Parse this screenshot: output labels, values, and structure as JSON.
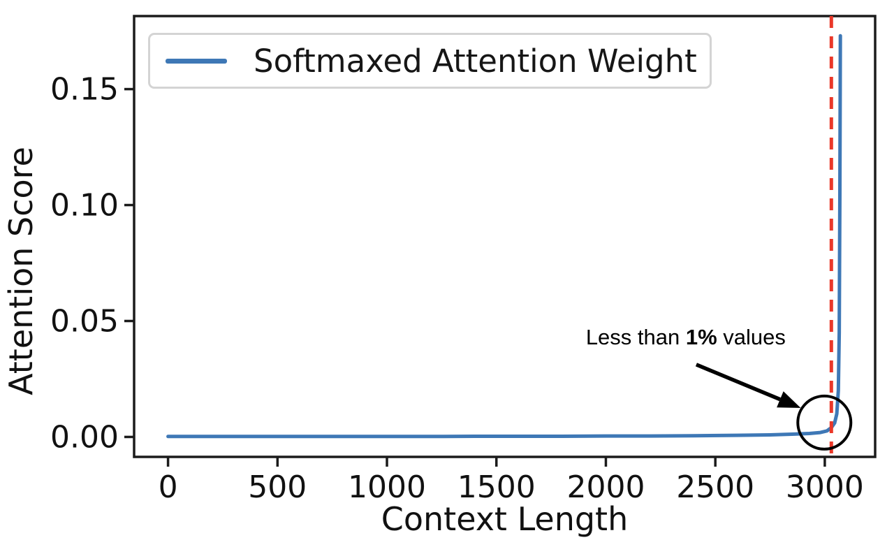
{
  "figure": {
    "background": "#ffffff",
    "spine_color": "#1b1b1b",
    "tick_label_color": "#111111"
  },
  "chart_data": {
    "type": "line",
    "title": "",
    "xlabel": "Context Length",
    "ylabel": "Attention Score",
    "xlim": [
      -155,
      3230
    ],
    "ylim": [
      -0.0086,
      0.1815
    ],
    "grid": false,
    "legend_position": "upper left",
    "xticks": {
      "values": [
        0,
        500,
        1000,
        1500,
        2000,
        2500,
        3000
      ],
      "labels": [
        "0",
        "500",
        "1000",
        "1500",
        "2000",
        "2500",
        "3000"
      ]
    },
    "yticks": {
      "values": [
        0.0,
        0.05,
        0.1,
        0.15
      ],
      "labels": [
        "0.00",
        "0.05",
        "0.10",
        "0.15"
      ]
    },
    "series": [
      {
        "name": "Softmaxed Attention Weight",
        "color": "#3e78b6",
        "x": [
          0,
          200,
          400,
          600,
          800,
          1000,
          1200,
          1400,
          1600,
          1800,
          2000,
          2200,
          2400,
          2600,
          2750,
          2850,
          2930,
          2980,
          3010,
          3030,
          3045,
          3055,
          3062,
          3066,
          3069,
          3071
        ],
        "y": [
          0.0002,
          0.0002,
          0.0002,
          0.0002,
          0.0002,
          0.0002,
          0.0002,
          0.0003,
          0.0003,
          0.0003,
          0.0004,
          0.0004,
          0.0005,
          0.0007,
          0.0009,
          0.0012,
          0.0015,
          0.0019,
          0.0026,
          0.004,
          0.006,
          0.01,
          0.02,
          0.045,
          0.105,
          0.173
        ]
      }
    ],
    "vline": {
      "x": 3030,
      "color": "#ea3829",
      "style": "dashed"
    },
    "annotation": {
      "text_before": "Less than ",
      "text_bold": "1%",
      "text_after": " values",
      "text_pos": {
        "x": 2365,
        "y": 0.043
      },
      "arrow": {
        "from": {
          "x": 2413,
          "y": 0.0312
        },
        "to": {
          "x": 2890,
          "y": 0.0125
        },
        "color": "#000000"
      },
      "circle": {
        "x": 2998,
        "y": 0.0062,
        "radius_px": 38,
        "color": "#000000"
      }
    }
  }
}
